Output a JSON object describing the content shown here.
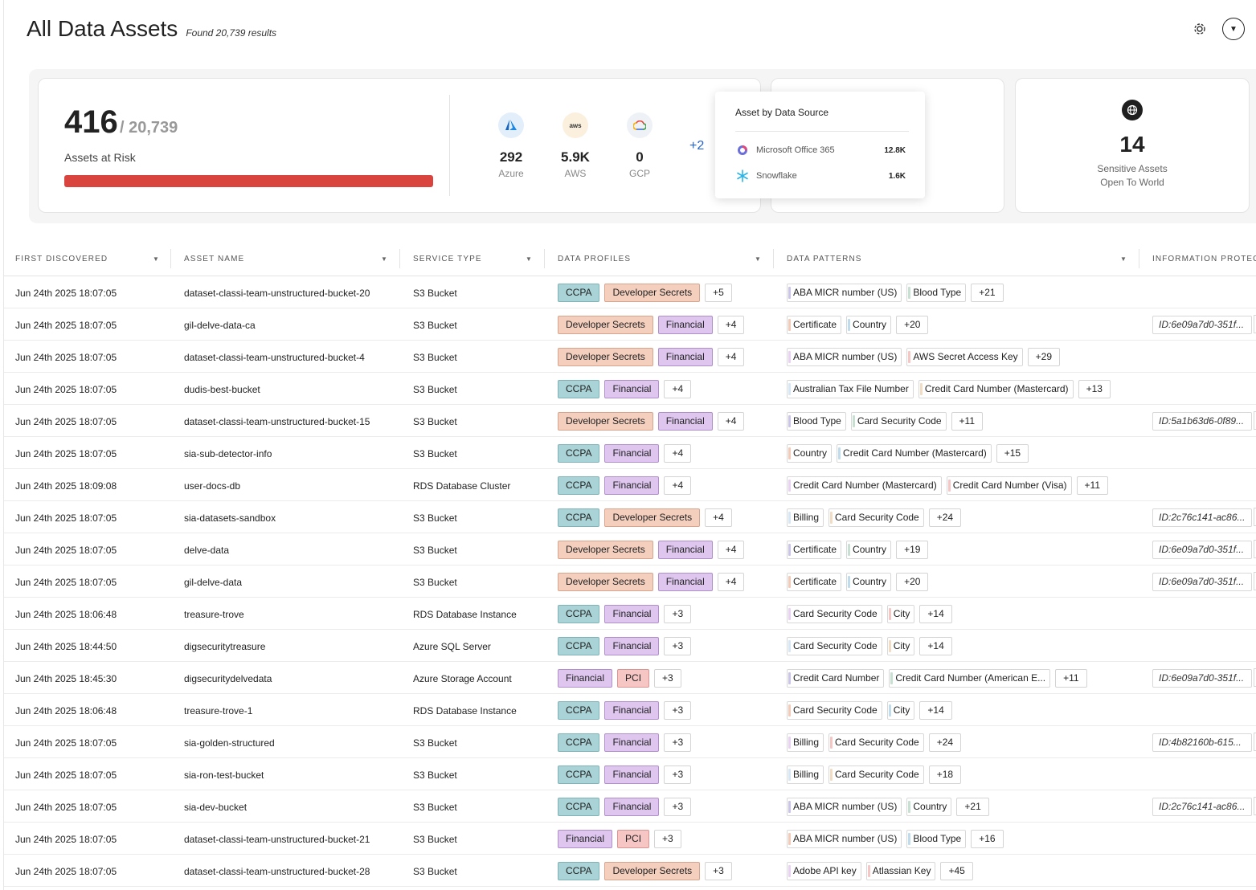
{
  "page": {
    "title": "All Data Assets",
    "subtitle": "Found 20,739 results"
  },
  "summary": {
    "risk_count": "416",
    "risk_total": "/ 20,739",
    "risk_label": "Assets at Risk",
    "risk_fraction": 0.02,
    "clouds": [
      {
        "icon": "azure-icon",
        "value": "292",
        "label": "Azure"
      },
      {
        "icon": "aws-icon",
        "value": "5.9K",
        "label": "AWS"
      },
      {
        "icon": "gcp-icon",
        "value": "0",
        "label": "GCP"
      }
    ],
    "more_clouds": "+2",
    "popup": {
      "title": "Asset by Data Source",
      "items": [
        {
          "icon": "microsoft-office-icon",
          "label": "Microsoft Office 365",
          "value": "12.8K"
        },
        {
          "icon": "snowflake-icon",
          "label": "Snowflake",
          "value": "1.6K"
        }
      ]
    },
    "sensitive": {
      "value": "14",
      "label_line1": "Sensitive Assets",
      "label_line2": "Open To World"
    }
  },
  "table": {
    "columns": [
      "FIRST DISCOVERED",
      "ASSET NAME",
      "SERVICE TYPE",
      "DATA PROFILES",
      "DATA PATTERNS",
      "INFORMATION PROTEC"
    ],
    "rows": [
      {
        "date": "Jun 24th 2025 18:07:05",
        "name": "dataset-classi-team-unstructured-bucket-20",
        "service": "S3 Bucket",
        "profiles": [
          "CCPA",
          "Developer Secrets"
        ],
        "profiles_more": "+5",
        "patterns": [
          "ABA MICR number (US)",
          "Blood Type"
        ],
        "patterns_more": "+21",
        "info": ""
      },
      {
        "date": "Jun 24th 2025 18:07:05",
        "name": "gil-delve-data-ca",
        "service": "S3 Bucket",
        "profiles": [
          "Developer Secrets",
          "Financial"
        ],
        "profiles_more": "+4",
        "patterns": [
          "Certificate",
          "Country"
        ],
        "patterns_more": "+20",
        "info": "ID:6e09a7d0-351f..."
      },
      {
        "date": "Jun 24th 2025 18:07:05",
        "name": "dataset-classi-team-unstructured-bucket-4",
        "service": "S3 Bucket",
        "profiles": [
          "Developer Secrets",
          "Financial"
        ],
        "profiles_more": "+4",
        "patterns": [
          "ABA MICR number (US)",
          "AWS Secret Access Key"
        ],
        "patterns_more": "+29",
        "info": ""
      },
      {
        "date": "Jun 24th 2025 18:07:05",
        "name": "dudis-best-bucket",
        "service": "S3 Bucket",
        "profiles": [
          "CCPA",
          "Financial"
        ],
        "profiles_more": "+4",
        "patterns": [
          "Australian Tax File Number",
          "Credit Card Number (Mastercard)"
        ],
        "patterns_more": "+13",
        "info": ""
      },
      {
        "date": "Jun 24th 2025 18:07:05",
        "name": "dataset-classi-team-unstructured-bucket-15",
        "service": "S3 Bucket",
        "profiles": [
          "Developer Secrets",
          "Financial"
        ],
        "profiles_more": "+4",
        "patterns": [
          "Blood Type",
          "Card Security Code"
        ],
        "patterns_more": "+11",
        "info": "ID:5a1b63d6-0f89..."
      },
      {
        "date": "Jun 24th 2025 18:07:05",
        "name": "sia-sub-detector-info",
        "service": "S3 Bucket",
        "profiles": [
          "CCPA",
          "Financial"
        ],
        "profiles_more": "+4",
        "patterns": [
          "Country",
          "Credit Card Number (Mastercard)"
        ],
        "patterns_more": "+15",
        "info": ""
      },
      {
        "date": "Jun 24th 2025 18:09:08",
        "name": "user-docs-db",
        "service": "RDS Database Cluster",
        "profiles": [
          "CCPA",
          "Financial"
        ],
        "profiles_more": "+4",
        "patterns": [
          "Credit Card Number (Mastercard)",
          "Credit Card Number (Visa)"
        ],
        "patterns_more": "+11",
        "info": ""
      },
      {
        "date": "Jun 24th 2025 18:07:05",
        "name": "sia-datasets-sandbox",
        "service": "S3 Bucket",
        "profiles": [
          "CCPA",
          "Developer Secrets"
        ],
        "profiles_more": "+4",
        "patterns": [
          "Billing",
          "Card Security Code"
        ],
        "patterns_more": "+24",
        "info": "ID:2c76c141-ac86..."
      },
      {
        "date": "Jun 24th 2025 18:07:05",
        "name": "delve-data",
        "service": "S3 Bucket",
        "profiles": [
          "Developer Secrets",
          "Financial"
        ],
        "profiles_more": "+4",
        "patterns": [
          "Certificate",
          "Country"
        ],
        "patterns_more": "+19",
        "info": "ID:6e09a7d0-351f..."
      },
      {
        "date": "Jun 24th 2025 18:07:05",
        "name": "gil-delve-data",
        "service": "S3 Bucket",
        "profiles": [
          "Developer Secrets",
          "Financial"
        ],
        "profiles_more": "+4",
        "patterns": [
          "Certificate",
          "Country"
        ],
        "patterns_more": "+20",
        "info": "ID:6e09a7d0-351f..."
      },
      {
        "date": "Jun 24th 2025 18:06:48",
        "name": "treasure-trove",
        "service": "RDS Database Instance",
        "profiles": [
          "CCPA",
          "Financial"
        ],
        "profiles_more": "+3",
        "patterns": [
          "Card Security Code",
          "City"
        ],
        "patterns_more": "+14",
        "info": ""
      },
      {
        "date": "Jun 24th 2025 18:44:50",
        "name": "digsecuritytreasure",
        "service": "Azure SQL Server",
        "profiles": [
          "CCPA",
          "Financial"
        ],
        "profiles_more": "+3",
        "patterns": [
          "Card Security Code",
          "City"
        ],
        "patterns_more": "+14",
        "info": ""
      },
      {
        "date": "Jun 24th 2025 18:45:30",
        "name": "digsecuritydelvedata",
        "service": "Azure Storage Account",
        "profiles": [
          "Financial",
          "PCI"
        ],
        "profiles_more": "+3",
        "patterns": [
          "Credit Card Number",
          "Credit Card Number (American E..."
        ],
        "patterns_more": "+11",
        "info": "ID:6e09a7d0-351f..."
      },
      {
        "date": "Jun 24th 2025 18:06:48",
        "name": "treasure-trove-1",
        "service": "RDS Database Instance",
        "profiles": [
          "CCPA",
          "Financial"
        ],
        "profiles_more": "+3",
        "patterns": [
          "Card Security Code",
          "City"
        ],
        "patterns_more": "+14",
        "info": ""
      },
      {
        "date": "Jun 24th 2025 18:07:05",
        "name": "sia-golden-structured",
        "service": "S3 Bucket",
        "profiles": [
          "CCPA",
          "Financial"
        ],
        "profiles_more": "+3",
        "patterns": [
          "Billing",
          "Card Security Code"
        ],
        "patterns_more": "+24",
        "info": "ID:4b82160b-615..."
      },
      {
        "date": "Jun 24th 2025 18:07:05",
        "name": "sia-ron-test-bucket",
        "service": "S3 Bucket",
        "profiles": [
          "CCPA",
          "Financial"
        ],
        "profiles_more": "+3",
        "patterns": [
          "Billing",
          "Card Security Code"
        ],
        "patterns_more": "+18",
        "info": ""
      },
      {
        "date": "Jun 24th 2025 18:07:05",
        "name": "sia-dev-bucket",
        "service": "S3 Bucket",
        "profiles": [
          "CCPA",
          "Financial"
        ],
        "profiles_more": "+3",
        "patterns": [
          "ABA MICR number (US)",
          "Country"
        ],
        "patterns_more": "+21",
        "info": "ID:2c76c141-ac86..."
      },
      {
        "date": "Jun 24th 2025 18:07:05",
        "name": "dataset-classi-team-unstructured-bucket-21",
        "service": "S3 Bucket",
        "profiles": [
          "Financial",
          "PCI"
        ],
        "profiles_more": "+3",
        "patterns": [
          "ABA MICR number (US)",
          "Blood Type"
        ],
        "patterns_more": "+16",
        "info": ""
      },
      {
        "date": "Jun 24th 2025 18:07:05",
        "name": "dataset-classi-team-unstructured-bucket-28",
        "service": "S3 Bucket",
        "profiles": [
          "CCPA",
          "Developer Secrets"
        ],
        "profiles_more": "+3",
        "patterns": [
          "Adobe API key",
          "Atlassian Key"
        ],
        "patterns_more": "+45",
        "info": ""
      }
    ]
  },
  "colors": {
    "risk_bar": "#d9443e",
    "ccpa": "#a9d3d6",
    "developer_secrets": "#f4cfbe",
    "financial": "#dec6ef",
    "pci": "#f5c6c4",
    "link": "#2563c9"
  }
}
